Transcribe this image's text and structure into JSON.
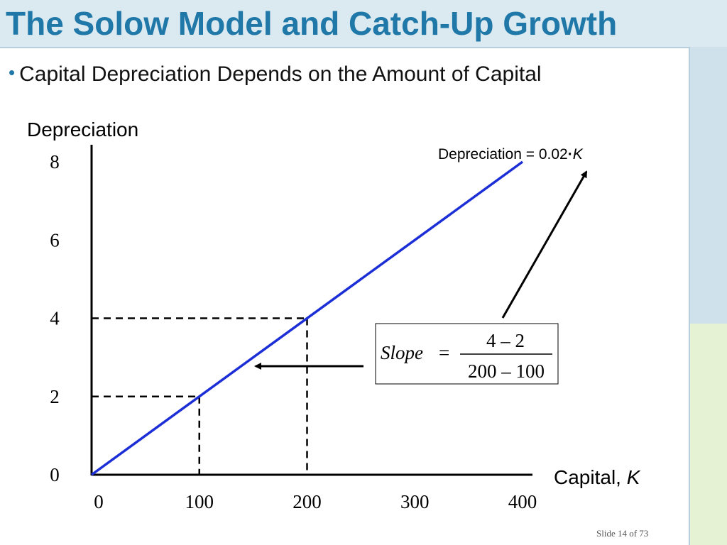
{
  "slide": {
    "title": "The Solow Model and Catch-Up Growth",
    "bullet": "Capital Depreciation Depends on the Amount of Capital",
    "slide_number": "Slide 14 of 73"
  },
  "colors": {
    "title": "#1f78a8",
    "line": "#1c2fd6",
    "background_top": "#cfe2ec",
    "background_bottom": "#e6f2d4"
  },
  "chart_data": {
    "type": "line",
    "ylabel": "Depreciation",
    "xlabel_prefix": "Capital, ",
    "xlabel_var": "K",
    "x_ticks": [
      "0",
      "100",
      "200",
      "300",
      "400"
    ],
    "y_ticks": [
      "0",
      "2",
      "4",
      "6",
      "8"
    ],
    "xlim": [
      0,
      400
    ],
    "ylim": [
      0,
      8
    ],
    "grid": false,
    "series": [
      {
        "name": "Depreciation = 0.02·K",
        "x": [
          0,
          400
        ],
        "y": [
          0,
          8
        ]
      }
    ],
    "reference_points": [
      {
        "x": 100,
        "y": 2
      },
      {
        "x": 200,
        "y": 4
      }
    ],
    "annotation": {
      "equation_prefix": "Depreciation = 0.02",
      "equation_dot": "·",
      "equation_var": "K",
      "slope_label": "Slope",
      "equals": "=",
      "numerator": "4 – 2",
      "denominator": "200 – 100"
    }
  }
}
